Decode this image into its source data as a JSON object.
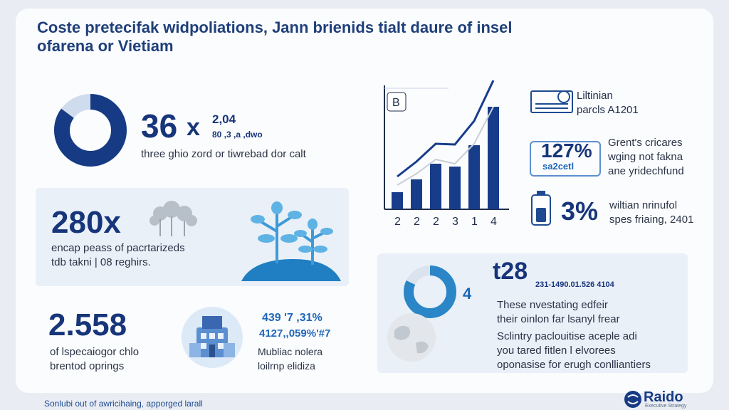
{
  "title": "Coste pretecifak widpoliations, Jann brienids tialt daure of insel ofarena or Vietiam",
  "stat1": {
    "value": "36",
    "arrow": "x",
    "sub_a": "2,04",
    "sub_b": "80 ,3 ,a ,dwo",
    "desc": "three ghio zord or tiwrebad dor calt",
    "donut_fraction": 0.85
  },
  "stat2": {
    "value": "280x",
    "desc1": "encap peass of pacrtarizeds",
    "desc2": "tdb takni | 08 reghirs."
  },
  "stat3": {
    "value": "2.558",
    "desc1": "of lspecaiogor chlo",
    "desc2": "brentod oprings"
  },
  "stat4": {
    "line1": "439 '7 ,31%",
    "line2": "4127,,059%'#7",
    "desc1": "Mubliac nolera",
    "desc2": "loilrnp elidiza"
  },
  "chart": {
    "badge": "B",
    "categories": [
      "2",
      "2",
      "2",
      "3",
      "1",
      "4"
    ],
    "values": [
      1.2,
      2.1,
      3.2,
      3.0,
      4.5,
      7.2
    ]
  },
  "right1": {
    "line1": "Liltinian",
    "line2": "parcls A1201"
  },
  "right2": {
    "value": "127%",
    "sub": "sa2cetl",
    "desc1": "Grent's cricares",
    "desc2": "wging not fakna",
    "desc3": "ane yridechfund"
  },
  "right3": {
    "value": "3%",
    "desc1": "wiltian nrinufol",
    "desc2": "spes friaing, 2401"
  },
  "panel": {
    "value": "t28",
    "arrow": "4",
    "sub": "231-1490.01.526 4104",
    "desc1": "These nvestating edfeir",
    "desc2": "their oinlon far lsanyl frear",
    "desc3": "Sclintry paclouitise aceple adi",
    "desc4": "you tared fitlen l elvorees",
    "desc5": "oponasise for erugh conlliantiers",
    "donut_fraction": 0.82
  },
  "footer": "Sonlubi out of awricihaing, apporged larall",
  "logo": {
    "name": "Raido",
    "tag": "Executive Strategy"
  }
}
